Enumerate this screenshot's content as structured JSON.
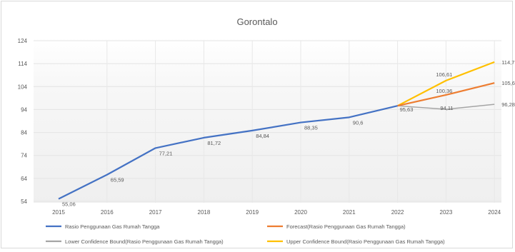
{
  "chart_data": {
    "type": "line",
    "title": "Gorontalo",
    "xlabel": "",
    "ylabel": "",
    "x": [
      "2015",
      "2016",
      "2017",
      "2018",
      "2019",
      "2020",
      "2021",
      "2022",
      "2023",
      "2024"
    ],
    "y_ticks": [
      "54",
      "64",
      "74",
      "84",
      "94",
      "104",
      "114",
      "124"
    ],
    "ylim": [
      54,
      124
    ],
    "grid": true,
    "legend_position": "bottom",
    "series": [
      {
        "name": "Rasio Penggunaan Gas Rumah Tangga",
        "color": "#4472c4",
        "values": [
          55.06,
          65.59,
          77.21,
          81.72,
          84.84,
          88.35,
          90.6,
          95.63,
          null,
          null
        ],
        "labels": [
          "55,06",
          "65,59",
          "77,21",
          "81,72",
          "84,84",
          "88,35",
          "90,6",
          "95,63",
          "",
          ""
        ]
      },
      {
        "name": "Forecast(Rasio Penggunaan Gas Rumah Tangga)",
        "color": "#ed7d31",
        "values": [
          null,
          null,
          null,
          null,
          null,
          null,
          null,
          95.63,
          100.36,
          105.6
        ],
        "labels": [
          "",
          "",
          "",
          "",
          "",
          "",
          "",
          "",
          "100,36",
          "105,6"
        ]
      },
      {
        "name": "Lower Confidence Bound(Rasio Penggunaan Gas Rumah Tangga)",
        "color": "#a5a5a5",
        "values": [
          null,
          null,
          null,
          null,
          null,
          null,
          null,
          95.63,
          94.11,
          96.28
        ],
        "labels": [
          "",
          "",
          "",
          "",
          "",
          "",
          "",
          "",
          "94,11",
          "96,28"
        ]
      },
      {
        "name": "Upper Confidence Bound(Rasio Penggunaan Gas Rumah Tangga)",
        "color": "#ffc000",
        "values": [
          null,
          null,
          null,
          null,
          null,
          null,
          null,
          95.63,
          106.61,
          114.7
        ],
        "labels": [
          "",
          "",
          "",
          "",
          "",
          "",
          "",
          "",
          "106,61",
          "114,7"
        ]
      }
    ]
  }
}
